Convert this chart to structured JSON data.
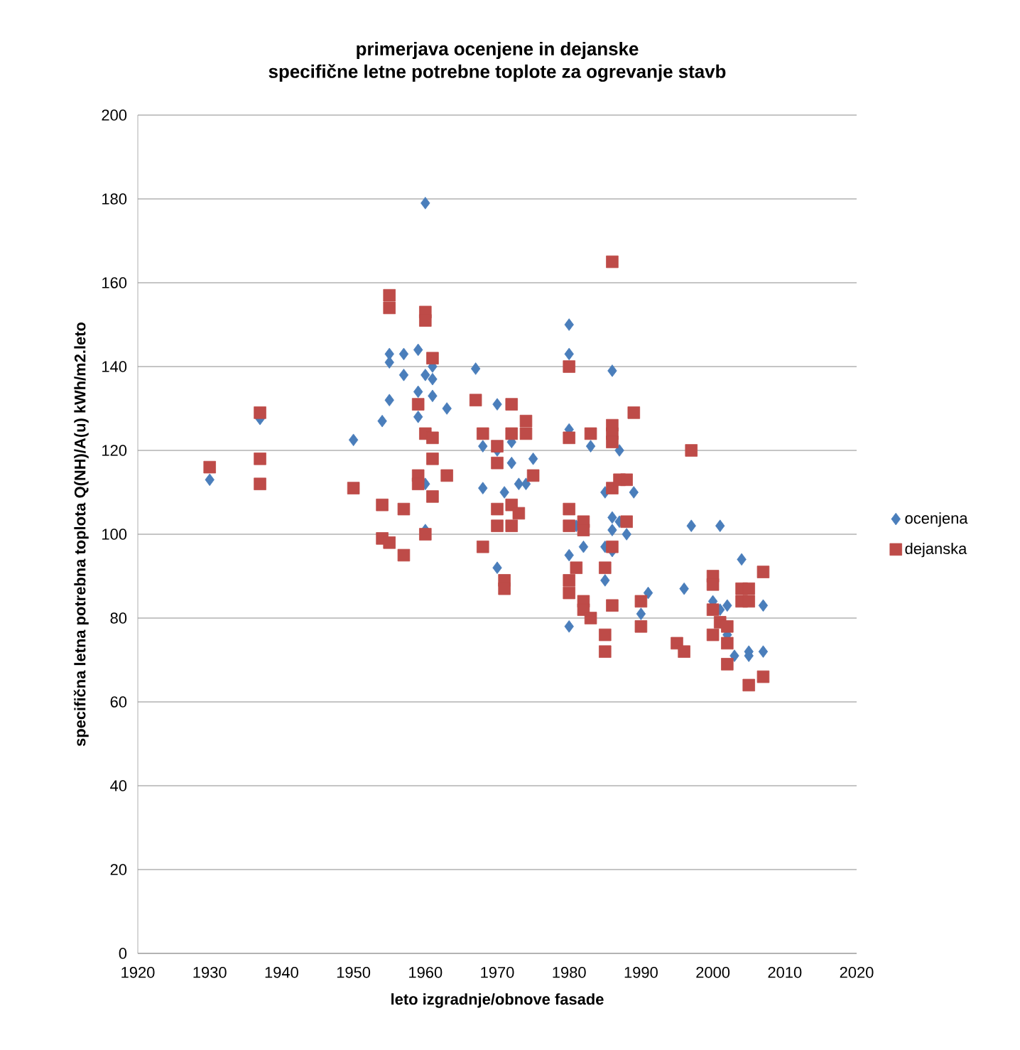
{
  "chart_data": {
    "type": "scatter",
    "title": "primerjava ocenjene in dejanske\nspecifične letne potrebne toplote za ogrevanje stavb",
    "xlabel": "leto izgradnje/obnove fasade",
    "ylabel": "specifična letna potrebna toplota Q(NH)/A(u) kWh/m2.leto",
    "xlim": [
      1920,
      2020
    ],
    "xticks": [
      1920,
      1930,
      1940,
      1950,
      1960,
      1970,
      1980,
      1990,
      2000,
      2010,
      2020
    ],
    "ylim": [
      0,
      200
    ],
    "yticks": [
      0,
      20,
      40,
      60,
      80,
      100,
      120,
      140,
      160,
      180,
      200
    ],
    "grid": "y",
    "legend": "right",
    "series": [
      {
        "name": "ocenjena",
        "color": "#4a7ebb",
        "marker": "diamond",
        "x": [
          1930,
          1937,
          1950,
          1954,
          1955,
          1955,
          1955,
          1957,
          1957,
          1959,
          1959,
          1959,
          1960,
          1960,
          1960,
          1960,
          1961,
          1961,
          1961,
          1963,
          1967,
          1968,
          1968,
          1970,
          1970,
          1970,
          1971,
          1972,
          1972,
          1973,
          1974,
          1975,
          1980,
          1980,
          1980,
          1980,
          1980,
          1981,
          1982,
          1983,
          1985,
          1985,
          1985,
          1986,
          1986,
          1986,
          1986,
          1987,
          1987,
          1988,
          1989,
          1991,
          1990,
          1996,
          1997,
          2000,
          2001,
          2001,
          2002,
          2002,
          2003,
          2004,
          2005,
          2005,
          2007,
          2007
        ],
        "values": [
          113,
          127.5,
          122.5,
          127,
          143,
          141,
          132,
          143,
          138,
          144,
          134,
          128,
          179,
          138,
          112,
          101,
          140,
          137,
          133,
          130,
          139.5,
          121,
          111,
          131,
          120,
          92,
          110,
          122,
          117,
          112,
          112,
          118,
          150,
          143,
          125,
          95,
          78,
          102,
          97,
          121,
          110,
          97,
          89,
          139,
          104,
          101,
          96,
          120,
          103,
          100,
          110,
          86,
          81,
          87,
          102,
          84,
          102,
          82,
          83,
          76,
          71,
          94,
          72,
          71,
          83,
          72
        ]
      },
      {
        "name": "dejanska",
        "color": "#be4b48",
        "marker": "square",
        "x": [
          1930,
          1937,
          1937,
          1937,
          1950,
          1954,
          1954,
          1955,
          1955,
          1955,
          1957,
          1957,
          1959,
          1959,
          1959,
          1960,
          1960,
          1960,
          1960,
          1961,
          1961,
          1961,
          1961,
          1963,
          1967,
          1968,
          1968,
          1970,
          1970,
          1970,
          1970,
          1971,
          1971,
          1972,
          1972,
          1972,
          1972,
          1973,
          1974,
          1974,
          1975,
          1980,
          1980,
          1980,
          1980,
          1980,
          1980,
          1981,
          1982,
          1982,
          1982,
          1982,
          1983,
          1983,
          1985,
          1985,
          1985,
          1986,
          1986,
          1986,
          1986,
          1986,
          1986,
          1986,
          1987,
          1988,
          1988,
          1989,
          1990,
          1990,
          1995,
          1996,
          1997,
          2000,
          2000,
          2000,
          2000,
          2001,
          2002,
          2002,
          2002,
          2004,
          2004,
          2005,
          2005,
          2005,
          2007,
          2007
        ],
        "values": [
          116,
          129,
          118,
          112,
          111,
          107,
          99,
          157,
          154,
          98,
          106,
          95,
          131,
          114,
          112,
          153,
          151,
          124,
          100,
          142,
          123,
          118,
          109,
          114,
          132,
          124,
          97,
          121,
          117,
          106,
          102,
          89,
          87,
          131,
          124,
          107,
          102,
          105,
          127,
          124,
          114,
          140,
          123,
          106,
          102,
          89,
          86,
          92,
          103,
          101,
          84,
          82,
          124,
          80,
          92,
          76,
          72,
          165,
          126,
          124,
          122,
          111,
          97,
          83,
          113,
          113,
          103,
          129,
          84,
          78,
          74,
          72,
          120,
          90,
          88,
          82,
          76,
          79,
          78,
          74,
          69,
          87,
          84,
          87,
          84,
          64,
          91,
          66
        ]
      }
    ]
  }
}
